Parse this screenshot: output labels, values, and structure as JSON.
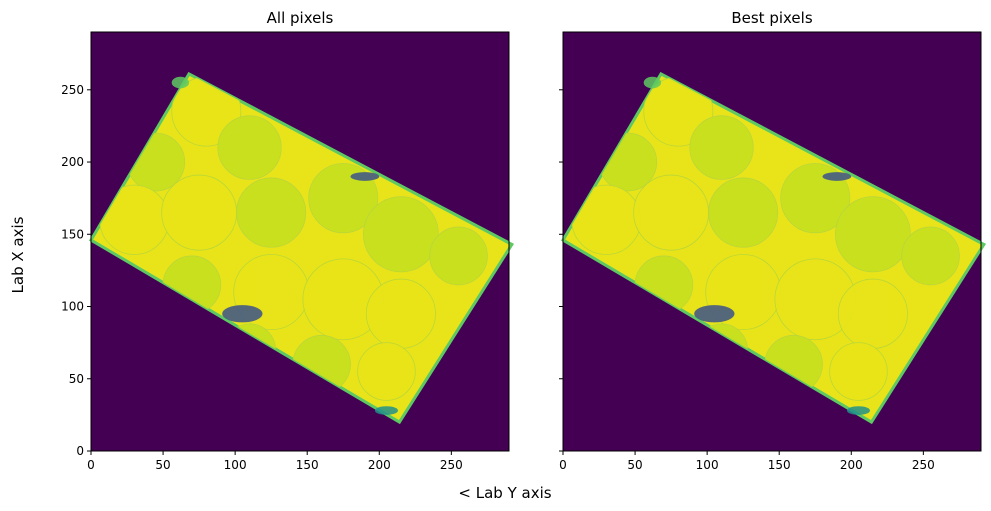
{
  "figure": {
    "supxlabel": "< Lab Y axis",
    "supylabel": "Lab X axis"
  },
  "colors": {
    "background": "#440154",
    "grain_yellow": "#e8e419",
    "grain_lime": "#c8e020",
    "edge_green": "#5ec962",
    "edge_teal": "#21918c",
    "dark_blue": "#3b528b",
    "violet": "#482878"
  },
  "chart_data": [
    {
      "type": "heatmap",
      "title": "All pixels",
      "colormap": "viridis",
      "xlim": [
        0,
        290
      ],
      "ylim": [
        0,
        290
      ],
      "x_ticks": [
        0,
        50,
        100,
        150,
        200,
        250
      ],
      "y_ticks": [
        0,
        50,
        100,
        150,
        200,
        250
      ],
      "x_tick_labels": [
        "0",
        "50",
        "100",
        "150",
        "200",
        "250"
      ],
      "y_tick_labels": [
        "0",
        "50",
        "100",
        "150",
        "200",
        "250"
      ],
      "grid": false,
      "sample_outline": [
        [
          68,
          261
        ],
        [
          292,
          143
        ],
        [
          214,
          20
        ],
        [
          0,
          146
        ]
      ]
    },
    {
      "type": "heatmap",
      "title": "Best pixels",
      "colormap": "viridis",
      "xlim": [
        0,
        290
      ],
      "ylim": [
        0,
        290
      ],
      "x_ticks": [
        0,
        50,
        100,
        150,
        200,
        250
      ],
      "y_ticks": [
        0,
        50,
        100,
        150,
        200,
        250
      ],
      "x_tick_labels": [
        "0",
        "50",
        "100",
        "150",
        "200",
        "250"
      ],
      "y_tick_labels": [
        "",
        "",
        "",
        "",
        "",
        ""
      ],
      "grid": false,
      "sample_outline": [
        [
          68,
          261
        ],
        [
          292,
          143
        ],
        [
          214,
          20
        ],
        [
          0,
          146
        ]
      ]
    }
  ]
}
